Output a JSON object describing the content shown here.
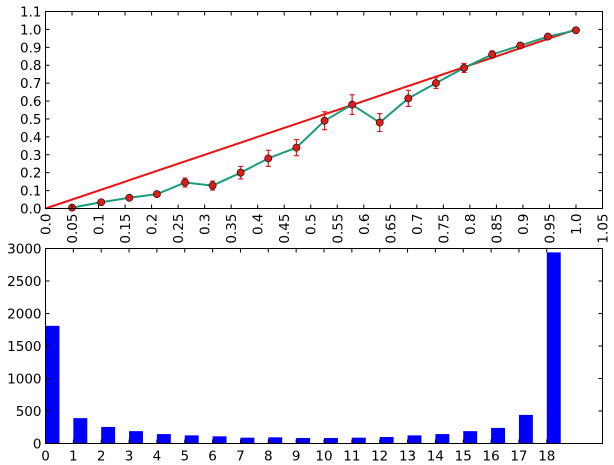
{
  "chart_data": [
    {
      "type": "line",
      "title": "",
      "xlabel": "",
      "ylabel": "",
      "xlim": [
        0,
        1.05
      ],
      "ylim": [
        0,
        1.1
      ],
      "grid": false,
      "x_ticks": [
        "0.0",
        "0.05",
        "0.1",
        "0.15",
        "0.2",
        "0.25",
        "0.3",
        "0.35",
        "0.4",
        "0.45",
        "0.5",
        "0.55",
        "0.6",
        "0.65",
        "0.7",
        "0.75",
        "0.8",
        "0.85",
        "0.9",
        "0.95",
        "1.0",
        "1.05"
      ],
      "y_ticks": [
        "0.0",
        "0.1",
        "0.2",
        "0.3",
        "0.4",
        "0.5",
        "0.6",
        "0.7",
        "0.8",
        "0.9",
        "1.0",
        "1.1"
      ],
      "series": [
        {
          "style": "line with error bars",
          "line_color": "#1a9e77",
          "marker_color": "#dd1c1c",
          "points": [
            {
              "x": 0.05,
              "y": 0.005,
              "err": 0.005
            },
            {
              "x": 0.105,
              "y": 0.035,
              "err": 0.008
            },
            {
              "x": 0.158,
              "y": 0.06,
              "err": 0.01
            },
            {
              "x": 0.21,
              "y": 0.08,
              "err": 0.012
            },
            {
              "x": 0.263,
              "y": 0.145,
              "err": 0.025
            },
            {
              "x": 0.315,
              "y": 0.128,
              "err": 0.025
            },
            {
              "x": 0.368,
              "y": 0.2,
              "err": 0.035
            },
            {
              "x": 0.42,
              "y": 0.28,
              "err": 0.045
            },
            {
              "x": 0.473,
              "y": 0.34,
              "err": 0.045
            },
            {
              "x": 0.526,
              "y": 0.49,
              "err": 0.05
            },
            {
              "x": 0.578,
              "y": 0.58,
              "err": 0.055
            },
            {
              "x": 0.63,
              "y": 0.48,
              "err": 0.05
            },
            {
              "x": 0.684,
              "y": 0.615,
              "err": 0.045
            },
            {
              "x": 0.736,
              "y": 0.7,
              "err": 0.03
            },
            {
              "x": 0.789,
              "y": 0.785,
              "err": 0.025
            },
            {
              "x": 0.842,
              "y": 0.86,
              "err": 0.02
            },
            {
              "x": 0.895,
              "y": 0.91,
              "err": 0.012
            },
            {
              "x": 0.947,
              "y": 0.96,
              "err": 0.01
            },
            {
              "x": 1.0,
              "y": 0.995,
              "err": 0.005
            }
          ]
        },
        {
          "style": "reference line",
          "line_color": "#ee1111",
          "points": [
            {
              "x": 0.0,
              "y": 0.0
            },
            {
              "x": 1.0,
              "y": 1.0
            }
          ]
        }
      ]
    },
    {
      "type": "bar",
      "title": "",
      "xlabel": "",
      "ylabel": "",
      "xlim": [
        0,
        20
      ],
      "ylim": [
        0,
        3000
      ],
      "grid": false,
      "bar_color": "#0000ff",
      "y_ticks": [
        "0",
        "500",
        "1000",
        "1500",
        "2000",
        "2500",
        "3000"
      ],
      "categories": [
        "0",
        "1",
        "2",
        "3",
        "4",
        "5",
        "6",
        "7",
        "8",
        "9",
        "10",
        "11",
        "12",
        "13",
        "14",
        "15",
        "16",
        "17",
        "18"
      ],
      "values": [
        1810,
        390,
        255,
        190,
        145,
        125,
        110,
        90,
        95,
        85,
        85,
        90,
        100,
        125,
        145,
        190,
        240,
        440,
        2940
      ]
    }
  ]
}
